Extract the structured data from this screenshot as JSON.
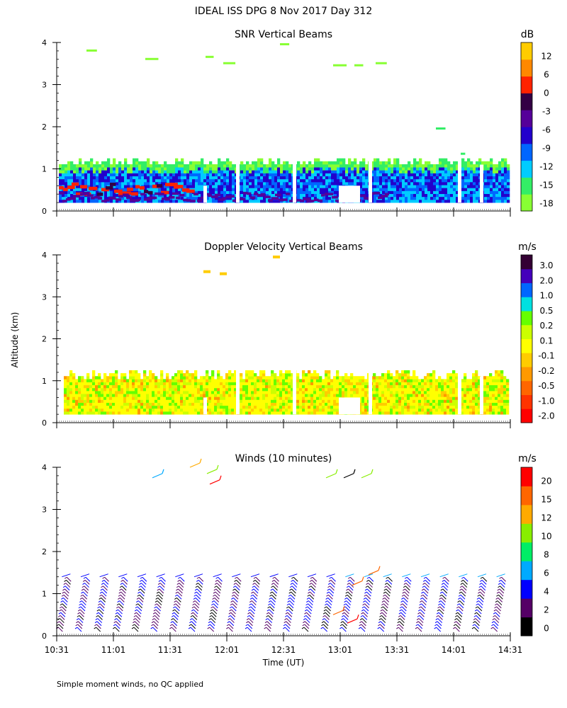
{
  "title": "IDEAL ISS DPG    8 Nov 2017 Day 312",
  "y_axis_label": "Altitude (km)",
  "x_axis_label": "Time (UT)",
  "footnote": "Simple moment winds, no QC applied",
  "colors": {
    "colorbar_doppler": [
      "#ff0000",
      "#ff3300",
      "#ff6600",
      "#ff9900",
      "#ffcc00",
      "#ffff00",
      "#ccff00",
      "#66ff00",
      "#00e0e0",
      "#0066ff",
      "#4400bb",
      "#330033"
    ],
    "colorbar_snr": [
      "#88ff33",
      "#33ee66",
      "#00ccff",
      "#0066ff",
      "#2200cc",
      "#550099",
      "#330044",
      "#ff2200",
      "#ff8800",
      "#ffcc00"
    ],
    "colorbar_winds": [
      "#000000",
      "#550066",
      "#0000ff",
      "#00aaff",
      "#00ee66",
      "#88ee00",
      "#ffaa00",
      "#ff6600",
      "#ff0000"
    ]
  },
  "chart_data": [
    {
      "type": "heatmap",
      "title": "SNR Vertical Beams",
      "colorbar_unit": "dB",
      "colorbar_ticks": [
        "12",
        "6",
        "0",
        "-3",
        "-6",
        "-9",
        "-12",
        "-15",
        "-18"
      ],
      "xlabel": "",
      "ylabel": "Altitude (km)",
      "x_ticks": [
        "10:31",
        "11:01",
        "11:31",
        "12:01",
        "12:31",
        "13:01",
        "13:31",
        "14:01",
        "14:31"
      ],
      "y_ticks": [
        "0",
        "1",
        "2",
        "3",
        "4"
      ],
      "xlim": [
        "10:31",
        "14:31"
      ],
      "ylim": [
        0,
        4
      ],
      "layers": [
        {
          "t0": "10:31",
          "t1": "14:31",
          "alt0": 0.2,
          "alt1": 1.05,
          "snr_db": -9
        },
        {
          "t0": "10:31",
          "t1": "14:31",
          "alt0": 0.85,
          "alt1": 1.3,
          "snr_db": -15
        },
        {
          "t0": "10:31",
          "t1": "11:41",
          "alt0": 0.35,
          "alt1": 0.6,
          "snr_db": 0
        },
        {
          "t0": "10:31",
          "t1": "13:25",
          "alt0": 0.2,
          "alt1": 0.4,
          "snr_db": -3
        }
      ]
    },
    {
      "type": "heatmap",
      "title": "Doppler Velocity Vertical Beams",
      "colorbar_unit": "m/s",
      "colorbar_ticks": [
        "3.0",
        "2.0",
        "1.0",
        "0.5",
        "0.2",
        "0.1",
        "-0.1",
        "-0.2",
        "-0.5",
        "-1.0",
        "-2.0"
      ],
      "xlabel": "",
      "ylabel": "Altitude (km)",
      "x_ticks": [
        "10:31",
        "11:01",
        "11:31",
        "12:01",
        "12:31",
        "13:01",
        "13:31",
        "14:01",
        "14:31"
      ],
      "y_ticks": [
        "0",
        "1",
        "2",
        "3",
        "4"
      ],
      "xlim": [
        "10:31",
        "14:31"
      ],
      "ylim": [
        0,
        4
      ],
      "layers": [
        {
          "t0": "10:31",
          "t1": "14:31",
          "alt0": 0.2,
          "alt1": 1.25,
          "velocity_ms": -0.1
        }
      ]
    },
    {
      "type": "scatter",
      "title": "Winds (10 minutes)",
      "colorbar_unit": "m/s",
      "colorbar_ticks": [
        "20",
        "15",
        "12",
        "10",
        "8",
        "6",
        "4",
        "2",
        "0"
      ],
      "xlabel": "Time (UT)",
      "ylabel": "Altitude (km)",
      "x_ticks": [
        "10:31",
        "11:01",
        "11:31",
        "12:01",
        "12:31",
        "13:01",
        "13:31",
        "14:01",
        "14:31"
      ],
      "y_ticks": [
        "0",
        "1",
        "2",
        "3",
        "4"
      ],
      "xlim": [
        "10:31",
        "14:31"
      ],
      "ylim": [
        0,
        4
      ],
      "profile_times": [
        "10:36",
        "10:46",
        "10:56",
        "11:06",
        "11:16",
        "11:26",
        "11:36",
        "11:46",
        "11:56",
        "12:06",
        "12:16",
        "12:26",
        "12:36",
        "12:46",
        "12:56",
        "13:06",
        "13:16",
        "13:26",
        "13:36",
        "13:46",
        "13:56",
        "14:06",
        "14:16",
        "14:26"
      ],
      "profile_top_km": 1.3,
      "typical_speed_ms": 4
    }
  ]
}
